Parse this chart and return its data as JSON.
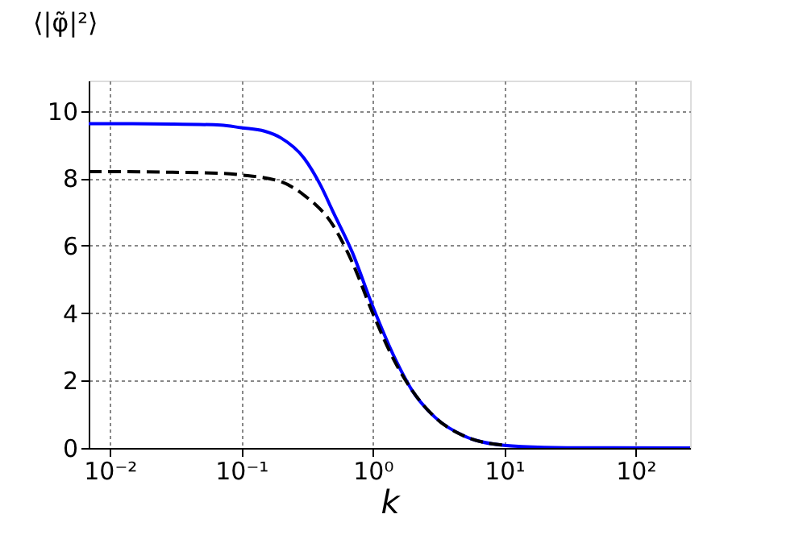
{
  "chart_data": {
    "type": "line",
    "xlabel": "k",
    "ylabel": "⟨|φ̃|²⟩",
    "log": "x",
    "xlim": [
      0.0069,
      260
    ],
    "ylim": [
      0,
      10.9
    ],
    "xticks": [
      {
        "value": 0.01,
        "label": "10⁻²"
      },
      {
        "value": 0.1,
        "label": "10⁻¹"
      },
      {
        "value": 1,
        "label": "10⁰"
      },
      {
        "value": 10,
        "label": "10¹"
      },
      {
        "value": 100,
        "label": "10²"
      }
    ],
    "yticks": [
      0,
      2,
      4,
      6,
      8,
      10
    ],
    "grid": true,
    "series": [
      {
        "color": "#0000ff",
        "line_style": "solid",
        "x": [
          0.0069,
          0.01,
          0.03,
          0.07,
          0.1,
          0.15,
          0.2,
          0.3,
          0.4,
          0.5,
          0.7,
          1.0,
          1.5,
          2,
          3,
          5,
          10,
          20,
          50,
          260
        ],
        "values": [
          9.62,
          9.62,
          9.61,
          9.58,
          9.5,
          9.4,
          9.2,
          8.6,
          7.8,
          7.0,
          5.8,
          4.2,
          2.6,
          1.7,
          0.9,
          0.35,
          0.08,
          0.02,
          0.005,
          0
        ]
      },
      {
        "color": "#000000",
        "line_style": "dashed",
        "x": [
          0.0069,
          0.01,
          0.03,
          0.07,
          0.1,
          0.2,
          0.3,
          0.5,
          0.7,
          1.0,
          1.5,
          2,
          3,
          5,
          10
        ],
        "values": [
          8.2,
          8.2,
          8.18,
          8.15,
          8.1,
          7.9,
          7.5,
          6.6,
          5.5,
          4.0,
          2.5,
          1.7,
          0.9,
          0.35,
          0.08
        ]
      }
    ]
  }
}
